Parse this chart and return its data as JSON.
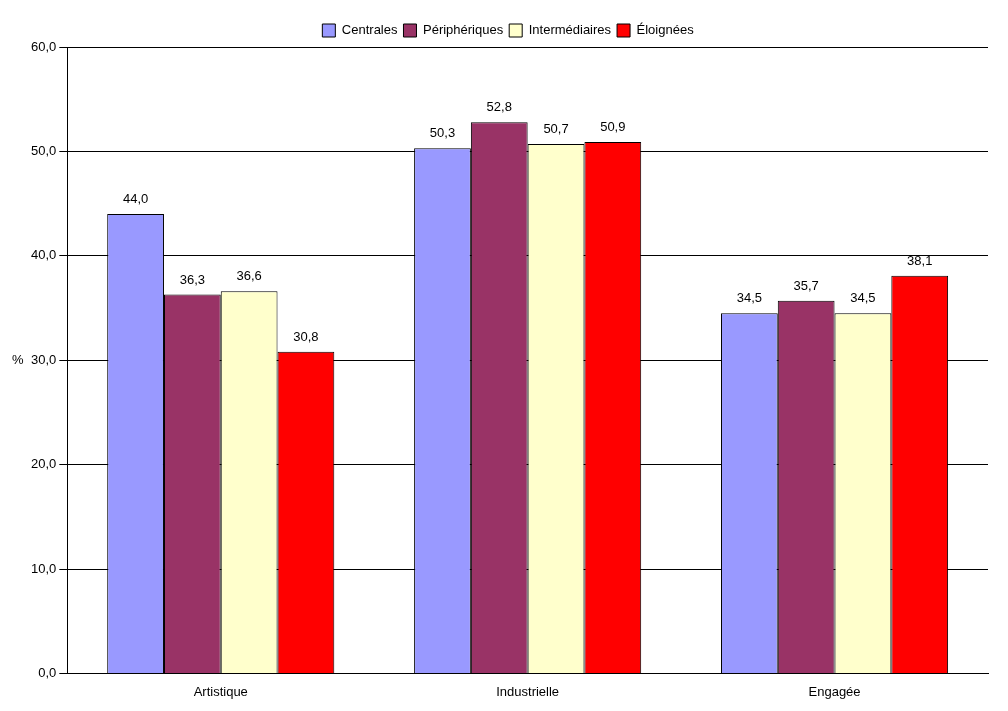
{
  "chart_data": {
    "type": "bar",
    "ylabel": "%",
    "categories": [
      "Artistique",
      "Industrielle",
      "Engagée"
    ],
    "series": [
      {
        "name": "Centrales",
        "color": "#9999ff",
        "values": [
          44.0,
          50.3,
          34.5
        ],
        "value_labels": [
          "44,0",
          "50,3",
          "34,5"
        ]
      },
      {
        "name": "Périphériques",
        "color": "#993366",
        "values": [
          36.3,
          52.8,
          35.7
        ],
        "value_labels": [
          "36,3",
          "52,8",
          "35,7"
        ]
      },
      {
        "name": "Intermédiaires",
        "color": "#ffffcc",
        "values": [
          36.6,
          50.7,
          34.5
        ],
        "value_labels": [
          "36,6",
          "50,7",
          "34,5"
        ]
      },
      {
        "name": "Éloignées",
        "color": "#ff0000",
        "values": [
          30.8,
          50.9,
          38.1
        ],
        "value_labels": [
          "30,8",
          "50,9",
          "38,1"
        ]
      }
    ],
    "ylim": [
      0,
      60
    ],
    "yticks": [
      {
        "value": 0,
        "label": "0,0"
      },
      {
        "value": 10,
        "label": "10,0"
      },
      {
        "value": 20,
        "label": "20,0"
      },
      {
        "value": 30,
        "label": "30,0"
      },
      {
        "value": 40,
        "label": "40,0"
      },
      {
        "value": 50,
        "label": "50,0"
      },
      {
        "value": 60,
        "label": "60,0"
      }
    ],
    "grid": "y",
    "legend": "top"
  }
}
